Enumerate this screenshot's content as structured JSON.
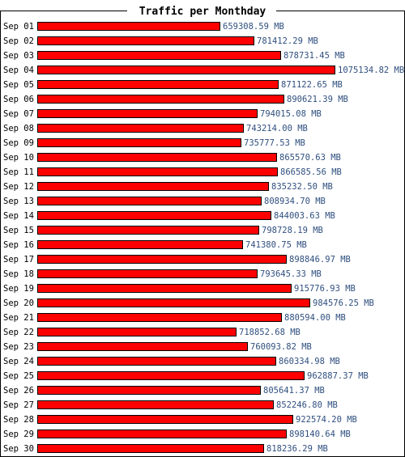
{
  "chart_data": {
    "type": "bar",
    "orientation": "horizontal",
    "title": "Traffic per Monthday",
    "unit": "MB",
    "categories": [
      "Sep 01",
      "Sep 02",
      "Sep 03",
      "Sep 04",
      "Sep 05",
      "Sep 06",
      "Sep 07",
      "Sep 08",
      "Sep 09",
      "Sep 10",
      "Sep 11",
      "Sep 12",
      "Sep 13",
      "Sep 14",
      "Sep 15",
      "Sep 16",
      "Sep 17",
      "Sep 18",
      "Sep 19",
      "Sep 20",
      "Sep 21",
      "Sep 22",
      "Sep 23",
      "Sep 24",
      "Sep 25",
      "Sep 26",
      "Sep 27",
      "Sep 28",
      "Sep 29",
      "Sep 30"
    ],
    "values": [
      659308.59,
      781412.29,
      878731.45,
      1075134.82,
      871122.65,
      890621.39,
      794015.08,
      743214.0,
      735777.53,
      865570.63,
      866585.56,
      835232.5,
      808934.7,
      844003.63,
      798728.19,
      741380.75,
      898846.97,
      793645.33,
      915776.93,
      984576.25,
      880594.0,
      718852.68,
      760093.82,
      860334.98,
      962887.37,
      805641.37,
      852246.8,
      922574.2,
      898140.64,
      818236.29
    ],
    "value_labels": [
      "659308.59 MB",
      "781412.29 MB",
      "878731.45 MB",
      "1075134.82 MB",
      "871122.65 MB",
      "890621.39 MB",
      "794015.08 MB",
      "743214.00 MB",
      "735777.53 MB",
      "865570.63 MB",
      "866585.56 MB",
      "835232.50 MB",
      "808934.70 MB",
      "844003.63 MB",
      "798728.19 MB",
      "741380.75 MB",
      "898846.97 MB",
      "793645.33 MB",
      "915776.93 MB",
      "984576.25 MB",
      "880594.00 MB",
      "718852.68 MB",
      "760093.82 MB",
      "860334.98 MB",
      "962887.37 MB",
      "805641.37 MB",
      "852246.80 MB",
      "922574.20 MB",
      "898140.64 MB",
      "818236.29 MB"
    ],
    "xlim": [
      0,
      1075134.82
    ],
    "grid": false,
    "colors": {
      "bar": "#ff0000",
      "bar_border": "#000000",
      "value_text": "#2f4f7f",
      "frame": "#000000"
    }
  }
}
